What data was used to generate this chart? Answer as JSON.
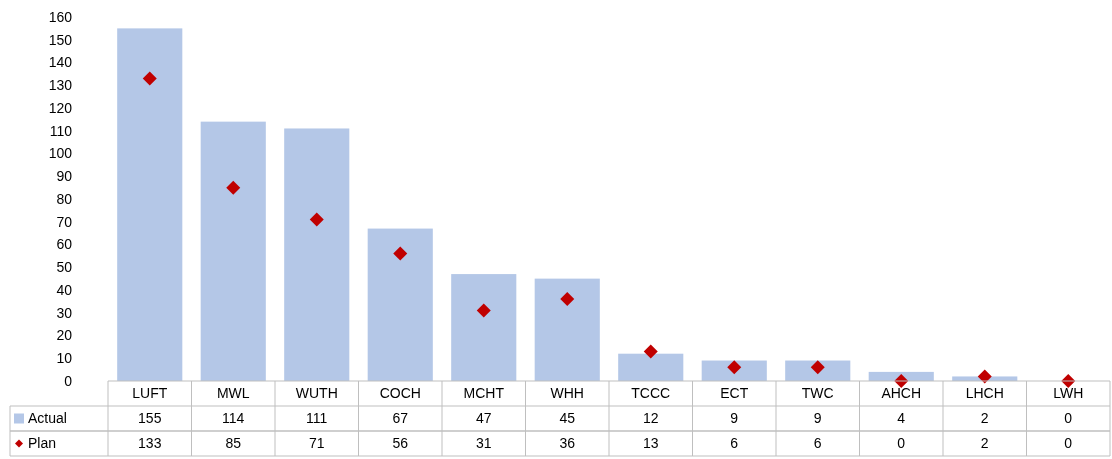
{
  "chart_data": {
    "type": "bar",
    "categories": [
      "LUFT",
      "MWL",
      "WUTH",
      "COCH",
      "MCHT",
      "WHH",
      "TCCC",
      "ECT",
      "TWC",
      "AHCH",
      "LHCH",
      "LWH"
    ],
    "series": [
      {
        "name": "Actual",
        "color": "#b4c7e7",
        "values": [
          155,
          114,
          111,
          67,
          47,
          45,
          12,
          9,
          9,
          4,
          2,
          0
        ]
      },
      {
        "name": "Plan",
        "type": "scatter",
        "marker": "diamond",
        "color": "#c00000",
        "values": [
          133,
          85,
          71,
          56,
          31,
          36,
          13,
          6,
          6,
          0,
          2,
          0
        ]
      }
    ],
    "ylim": [
      0,
      160
    ],
    "yticks": [
      0,
      10,
      20,
      30,
      40,
      50,
      60,
      70,
      80,
      90,
      100,
      110,
      120,
      130,
      140,
      150,
      160
    ],
    "grid": false,
    "data_labels": true,
    "legend": "bottom"
  }
}
